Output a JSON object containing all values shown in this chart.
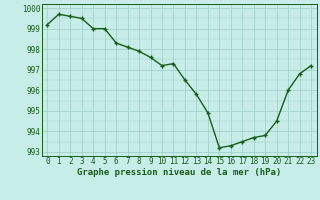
{
  "x": [
    0,
    1,
    2,
    3,
    4,
    5,
    6,
    7,
    8,
    9,
    10,
    11,
    12,
    13,
    14,
    15,
    16,
    17,
    18,
    19,
    20,
    21,
    22,
    23
  ],
  "y": [
    999.2,
    999.7,
    999.6,
    999.5,
    999.0,
    999.0,
    998.3,
    998.1,
    997.9,
    997.6,
    997.2,
    997.3,
    996.5,
    995.8,
    994.9,
    993.2,
    993.3,
    993.5,
    993.7,
    993.8,
    994.5,
    996.0,
    996.8,
    997.2
  ],
  "line_color": "#1a5c1a",
  "marker": "+",
  "marker_size": 3,
  "marker_linewidth": 1.0,
  "bg_color": "#c6ede8",
  "grid_color": "#9ecdc7",
  "ylim": [
    992.8,
    1000.2
  ],
  "xlim": [
    -0.5,
    23.5
  ],
  "yticks": [
    993,
    994,
    995,
    996,
    997,
    998,
    999,
    1000
  ],
  "xtick_labels": [
    "0",
    "1",
    "2",
    "3",
    "4",
    "5",
    "6",
    "7",
    "8",
    "9",
    "10",
    "11",
    "12",
    "13",
    "14",
    "15",
    "16",
    "17",
    "18",
    "19",
    "20",
    "21",
    "22",
    "23"
  ],
  "xlabel": "Graphe pression niveau de la mer (hPa)",
  "xlabel_fontsize": 6.5,
  "tick_fontsize": 5.5,
  "line_width": 1.0
}
